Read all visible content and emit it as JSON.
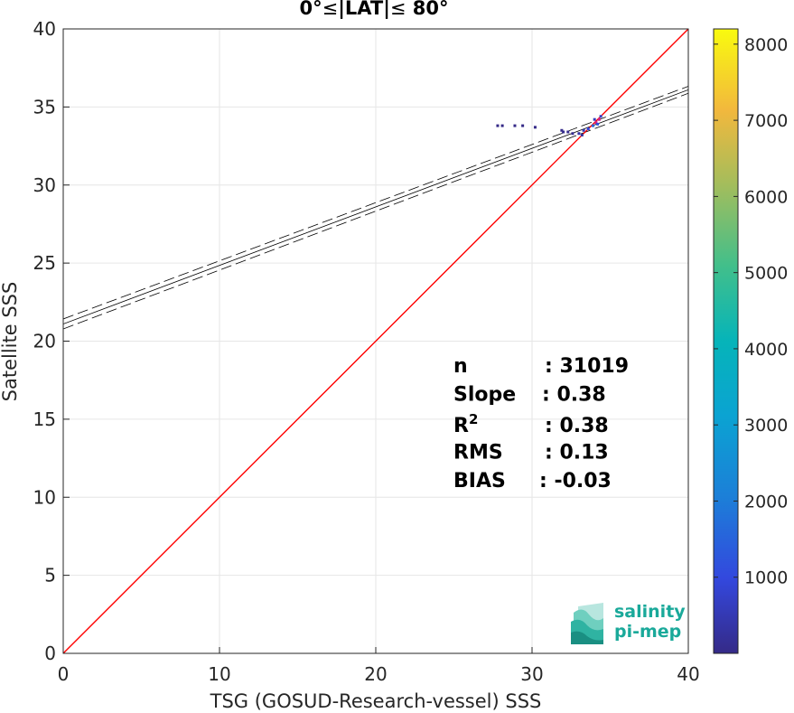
{
  "chart_data": {
    "type": "scatter",
    "title_parts": {
      "pre": "0°",
      "op1": "≤",
      "mid": "|LAT|",
      "op2": "≤",
      "post": " 80°"
    },
    "xlabel": "TSG (GOSUD-Research-vessel) SSS",
    "ylabel": "Satellite SSS",
    "xlim": [
      0,
      40
    ],
    "ylim": [
      0,
      40
    ],
    "xticks": [
      "0",
      "10",
      "20",
      "30",
      "40"
    ],
    "yticks": [
      "0",
      "5",
      "10",
      "15",
      "20",
      "25",
      "30",
      "35",
      "40"
    ],
    "grid": true,
    "colorbar": {
      "range": [
        0,
        8200
      ],
      "ticks": [
        "1000",
        "2000",
        "3000",
        "4000",
        "5000",
        "6000",
        "7000",
        "8000"
      ],
      "colormap": "parula"
    },
    "identity_line": {
      "from": [
        0,
        0
      ],
      "to": [
        40,
        40
      ],
      "color": "#ff0000"
    },
    "regression": {
      "intercept": 21.1,
      "slope": 0.375,
      "band": 0.32
    },
    "points": [
      {
        "x": 27.8,
        "y": 33.8,
        "count": 5
      },
      {
        "x": 28.1,
        "y": 33.8,
        "count": 5
      },
      {
        "x": 28.9,
        "y": 33.8,
        "count": 4
      },
      {
        "x": 29.4,
        "y": 33.8,
        "count": 4
      },
      {
        "x": 30.2,
        "y": 33.7,
        "count": 6
      },
      {
        "x": 31.9,
        "y": 33.5,
        "count": 40
      },
      {
        "x": 32.3,
        "y": 33.4,
        "count": 80
      },
      {
        "x": 32.6,
        "y": 33.3,
        "count": 120
      },
      {
        "x": 33.0,
        "y": 33.3,
        "count": 300
      },
      {
        "x": 33.3,
        "y": 33.5,
        "count": 500
      },
      {
        "x": 33.6,
        "y": 33.6,
        "count": 900
      },
      {
        "x": 33.9,
        "y": 33.8,
        "count": 1500
      },
      {
        "x": 34.1,
        "y": 34.0,
        "count": 2500
      },
      {
        "x": 34.3,
        "y": 34.2,
        "count": 1800
      },
      {
        "x": 34.4,
        "y": 34.4,
        "count": 700
      },
      {
        "x": 34.2,
        "y": 33.9,
        "count": 1200
      },
      {
        "x": 34.0,
        "y": 34.2,
        "count": 600
      },
      {
        "x": 32.0,
        "y": 33.4,
        "count": 60
      },
      {
        "x": 33.2,
        "y": 33.2,
        "count": 200
      }
    ],
    "stats": [
      {
        "label": "n",
        "value": ": 31019"
      },
      {
        "label": "Slope",
        "value": ": 0.38"
      },
      {
        "label": "R",
        "sup": "2",
        "value": ": 0.38"
      },
      {
        "label": "RMS",
        "value": ": 0.13"
      },
      {
        "label": "BIAS",
        "value": ": -0.03"
      }
    ]
  },
  "logo": {
    "line1": "salinity",
    "line2": "pi-mep",
    "color": "#1aa99a"
  }
}
